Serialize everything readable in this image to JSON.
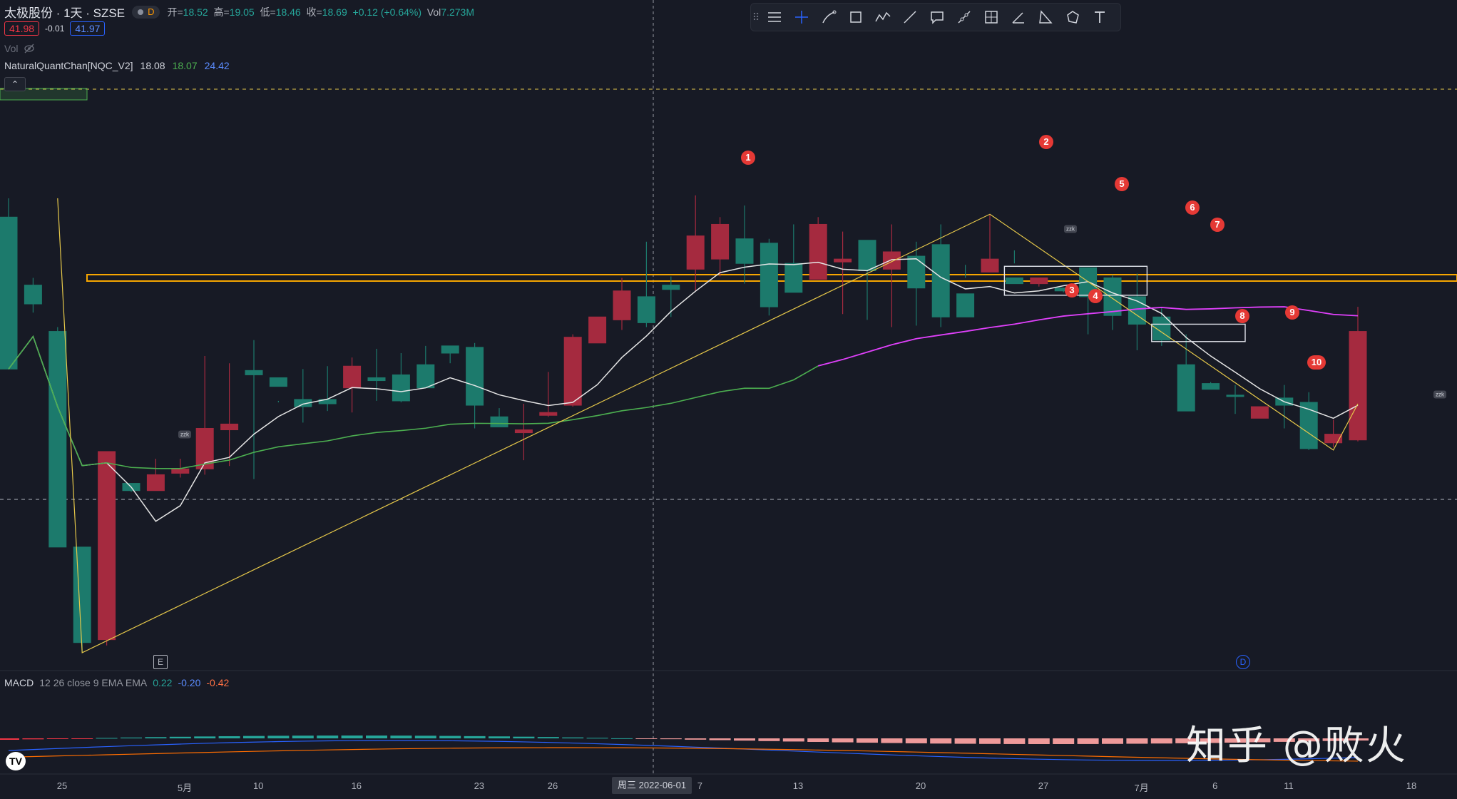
{
  "header": {
    "symbol": "太极股份 · 1天 · SZSE",
    "badge": "D",
    "open_label": "开=",
    "open": "18.52",
    "high_label": "高=",
    "high": "19.05",
    "low_label": "低=",
    "low": "18.46",
    "close_label": "收=",
    "close": "18.69",
    "change": "+0.12 (+0.64%)",
    "vol_label": "Vol",
    "vol": "7.273M"
  },
  "price_boxes": {
    "sell": "41.98",
    "spread": "-0.01",
    "buy": "41.97"
  },
  "indicators": {
    "vol_label": "Vol",
    "nqc_name": "NaturalQuantChan[NQC_V2]",
    "nqc_v1": "18.08",
    "nqc_v2": "18.07",
    "nqc_v3": "24.42",
    "macd_name": "MACD",
    "macd_params": "12 26 close 9 EMA EMA",
    "macd_v1": "0.22",
    "macd_v2": "-0.20",
    "macd_v3": "-0.42"
  },
  "toolbar": {
    "icons": [
      "lines-icon",
      "crosshair-icon",
      "brush-icon",
      "rectangle-icon",
      "polyline-icon",
      "trendline-icon",
      "callout-icon",
      "path-icon",
      "grid-icon",
      "angle-icon",
      "triangle-icon",
      "nodes-icon",
      "text-icon"
    ]
  },
  "x_axis": {
    "labels": [
      {
        "text": "25",
        "i": 0
      },
      {
        "text": "5月",
        "i": 5
      },
      {
        "text": "10",
        "i": 8
      },
      {
        "text": "16",
        "i": 12
      },
      {
        "text": "23",
        "i": 17
      },
      {
        "text": "26",
        "i": 20
      },
      {
        "text": "7",
        "i": 26
      },
      {
        "text": "13",
        "i": 30
      },
      {
        "text": "20",
        "i": 35
      },
      {
        "text": "27",
        "i": 40
      },
      {
        "text": "7月",
        "i": 44
      },
      {
        "text": "6",
        "i": 47
      },
      {
        "text": "11",
        "i": 50
      },
      {
        "text": "18",
        "i": 55
      }
    ],
    "cursor_label": "周三 2022-06-01"
  },
  "markers": [
    "1",
    "2",
    "3",
    "4",
    "5",
    "6",
    "7",
    "8",
    "9",
    "10"
  ],
  "zzk_label": "zzk",
  "badges": {
    "earnings": "E",
    "dividend": "D"
  },
  "logo": "TV",
  "watermark": "知乎 @败火",
  "colors": {
    "up": "#a52a3f",
    "down": "#1c7a6c",
    "ma_white": "#e6e6e6",
    "ma_green": "#4caf50",
    "ma_magenta": "#e040fb",
    "zigzag": "#e6c84a",
    "level_band": "#f7a600"
  },
  "chart_data": {
    "type": "candlestick",
    "y_range": [
      16.6,
      20.1
    ],
    "candles": [
      [
        19.29,
        18.24,
        19.42,
        18.24
      ],
      [
        18.82,
        18.69,
        18.87,
        18.63
      ],
      [
        18.5,
        17.01,
        18.53,
        17.01
      ],
      [
        17.01,
        16.35,
        17.01,
        16.28
      ],
      [
        16.37,
        17.67,
        17.67,
        16.33
      ],
      [
        17.45,
        17.4,
        17.45,
        17.39
      ],
      [
        17.4,
        17.51,
        17.62,
        17.4
      ],
      [
        17.52,
        17.55,
        17.62,
        17.49
      ],
      [
        17.55,
        17.83,
        18.33,
        17.51
      ],
      [
        17.82,
        17.86,
        18.28,
        17.57
      ],
      [
        18.23,
        18.2,
        18.44,
        17.48
      ],
      [
        18.18,
        18.12,
        18.02,
        18.01
      ],
      [
        18.03,
        17.98,
        18.24,
        17.87
      ],
      [
        18.03,
        18.0,
        18.26,
        17.95
      ],
      [
        18.11,
        18.26,
        18.32,
        17.94
      ],
      [
        18.18,
        18.16,
        18.38,
        18.02
      ],
      [
        18.2,
        18.02,
        18.35,
        18.01
      ],
      [
        18.27,
        18.11,
        18.4,
        18.2
      ],
      [
        18.4,
        18.35,
        18.38,
        18.28
      ],
      [
        18.39,
        17.99,
        18.42,
        17.83
      ],
      [
        17.91,
        17.84,
        17.97,
        17.84
      ],
      [
        17.8,
        17.82,
        18.0,
        17.61
      ],
      [
        17.92,
        17.94,
        18.22,
        17.91
      ],
      [
        17.99,
        18.46,
        18.48,
        17.98
      ],
      [
        18.42,
        18.6,
        18.6,
        18.52
      ],
      [
        18.58,
        18.78,
        18.87,
        18.51
      ],
      [
        18.74,
        18.56,
        19.12,
        18.53
      ],
      [
        18.82,
        18.79,
        18.88,
        18.6
      ],
      [
        18.93,
        19.16,
        19.44,
        18.78
      ],
      [
        19.0,
        19.24,
        19.29,
        18.88
      ],
      [
        19.14,
        18.97,
        19.37,
        18.83
      ],
      [
        19.11,
        18.67,
        19.14,
        18.61
      ],
      [
        18.97,
        18.77,
        19.24,
        18.88
      ],
      [
        18.86,
        19.24,
        19.29,
        18.89
      ],
      [
        18.98,
        19.0,
        19.19,
        18.62
      ],
      [
        19.13,
        18.92,
        19.04,
        18.58
      ],
      [
        18.93,
        19.05,
        19.24,
        18.53
      ],
      [
        19.02,
        18.8,
        19.12,
        18.54
      ],
      [
        19.1,
        18.6,
        19.24,
        18.53
      ],
      [
        18.76,
        18.6,
        18.96,
        18.87
      ],
      [
        18.91,
        19.0,
        19.31,
        18.91
      ],
      [
        18.87,
        18.83,
        19.06,
        18.97
      ],
      [
        18.83,
        18.87,
        18.85,
        18.81
      ],
      [
        18.8,
        18.78,
        18.8,
        18.77
      ],
      [
        18.94,
        18.74,
        18.89,
        18.48
      ],
      [
        18.87,
        18.61,
        18.89,
        18.51
      ],
      [
        18.74,
        18.55,
        18.9,
        18.37
      ],
      [
        18.6,
        18.44,
        18.66,
        18.4
      ],
      [
        18.27,
        17.95,
        18.48,
        18.15
      ],
      [
        18.14,
        18.1,
        18.15,
        18.14
      ],
      [
        18.06,
        18.05,
        18.13,
        17.93
      ],
      [
        17.9,
        17.98,
        17.96,
        17.97
      ],
      [
        18.04,
        17.99,
        18.13,
        17.83
      ],
      [
        18.01,
        17.69,
        18.08,
        17.68
      ],
      [
        17.73,
        17.79,
        17.89,
        17.7
      ],
      [
        17.75,
        18.5,
        18.67,
        17.74
      ]
    ]
  }
}
